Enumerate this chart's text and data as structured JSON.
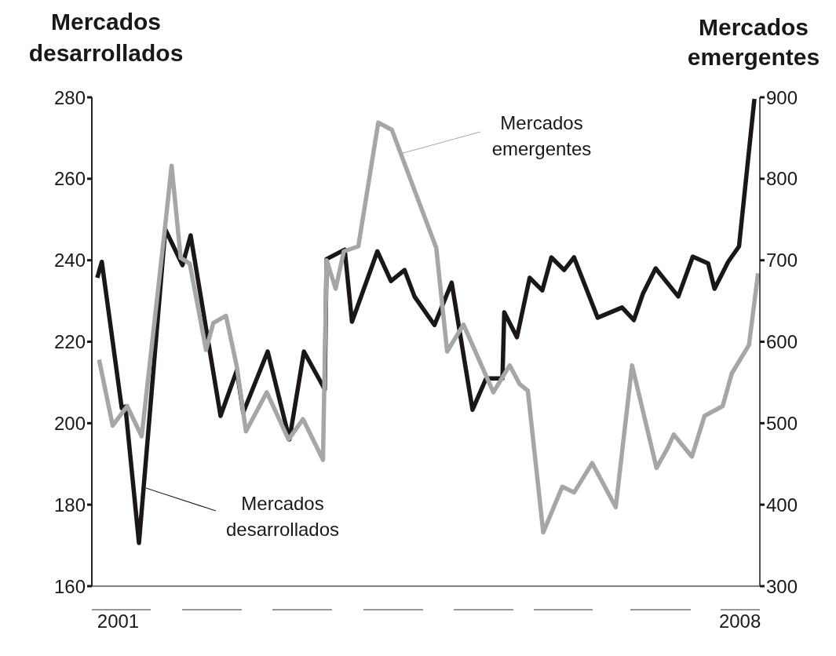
{
  "chart_data": {
    "type": "line",
    "ylabel": "Mercados desarrollados",
    "y2label": "Mercados emergentes",
    "xlim": [
      2001,
      2008.37
    ],
    "xticks": [
      {
        "value": 2001.29,
        "label": "2001"
      },
      {
        "value": 2008.15,
        "label": "2008"
      }
    ],
    "ylim": [
      160,
      280
    ],
    "yticks": [
      160,
      180,
      200,
      220,
      240,
      260,
      280
    ],
    "y2lim": [
      300,
      900
    ],
    "y2ticks": [
      300,
      400,
      500,
      600,
      700,
      800,
      900
    ],
    "legend": "center",
    "marker": "none",
    "line_style": "solid",
    "series": [
      {
        "name": "Mercados desarrollados",
        "color": "#1a1716",
        "x": [
          2001.06,
          2001.11,
          2001.33,
          2001.37,
          2001.52,
          2001.81,
          2002.0,
          2002.09,
          2002.42,
          2002.6,
          2002.67,
          2002.94,
          2003.18,
          2003.34,
          2003.57,
          2003.59,
          2003.79,
          2003.87,
          2004.15,
          2004.3,
          2004.45,
          2004.56,
          2004.78,
          2004.97,
          2005.2,
          2005.35,
          2005.53,
          2005.55,
          2005.69,
          2005.83,
          2005.97,
          2006.07,
          2006.21,
          2006.32,
          2006.58,
          2006.85,
          2006.98,
          2007.08,
          2007.22,
          2007.47,
          2007.63,
          2007.8,
          2007.87,
          2008.02,
          2008.14,
          2008.31
        ],
        "values": [
          235.7,
          239.6,
          203.7,
          204.1,
          170.6,
          247.6,
          238.8,
          246.1,
          201.8,
          213,
          202.6,
          217.6,
          196,
          217.6,
          208.3,
          240.3,
          242.6,
          224.9,
          242.2,
          234.9,
          237.6,
          231.1,
          224.1,
          234.5,
          203.3,
          211,
          211,
          227.2,
          221.1,
          235.7,
          232.6,
          240.7,
          237.6,
          240.7,
          225.9,
          228.4,
          225.3,
          231.8,
          238,
          231.1,
          240.9,
          239.2,
          233,
          239.6,
          243.4,
          279.6
        ]
      },
      {
        "name": "Mercados emergentes",
        "color": "#a6a6a6",
        "axis": "y2",
        "x": [
          2001.08,
          2001.23,
          2001.39,
          2001.55,
          2001.81,
          2001.88,
          2001.98,
          2002.08,
          2002.26,
          2002.34,
          2002.48,
          2002.6,
          2002.7,
          2002.93,
          2003.17,
          2003.33,
          2003.55,
          2003.59,
          2003.69,
          2003.78,
          2003.94,
          2004.16,
          2004.31,
          2004.8,
          2004.92,
          2005.1,
          2005.43,
          2005.61,
          2005.72,
          2005.81,
          2005.98,
          2006.19,
          2006.32,
          2006.52,
          2006.78,
          2006.96,
          2007.23,
          2007.35,
          2007.42,
          2007.62,
          2007.76,
          2007.96,
          2008.06,
          2008.25,
          2008.35
        ],
        "values": [
          578,
          497,
          521,
          484,
          743,
          816,
          703,
          696,
          590,
          623,
          632,
          569,
          490,
          538,
          480,
          505,
          455,
          700,
          665,
          711,
          717,
          869,
          860,
          715,
          588,
          621,
          538,
          571,
          548,
          540,
          366,
          422,
          415,
          451,
          397,
          571,
          445,
          469,
          486,
          459,
          509,
          521,
          561,
          596,
          684
        ]
      }
    ]
  }
}
